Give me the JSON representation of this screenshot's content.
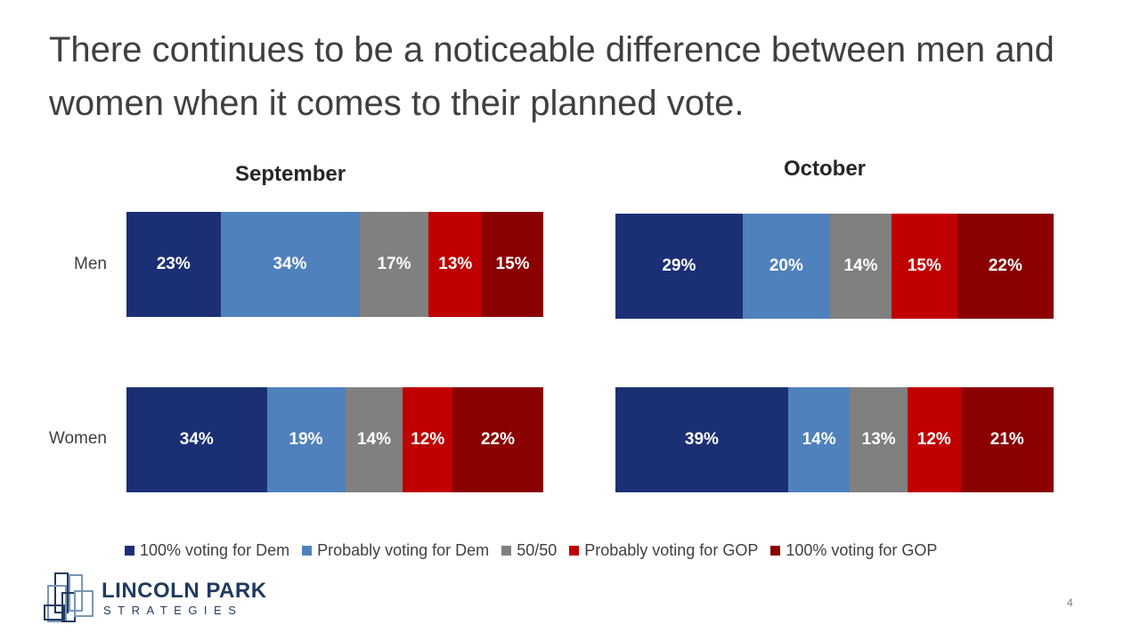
{
  "title": "There continues to be a noticeable difference between men and women when it comes to their planned vote.",
  "page_number": "4",
  "logo": {
    "name": "LINCOLN PARK",
    "sub": "STRATEGIES"
  },
  "colors": {
    "dem100": "#1b2f74",
    "demProb": "#4f81bd",
    "fifty": "#808080",
    "gopProb": "#c00000",
    "gop100": "#8b0000"
  },
  "chart_data": [
    {
      "type": "bar",
      "title": "September",
      "orientation": "horizontal",
      "stacked": "100%",
      "categories": [
        "Men",
        "Women"
      ],
      "series": [
        {
          "name": "100% voting for Dem",
          "values": [
            23,
            34
          ]
        },
        {
          "name": "Probably voting for Dem",
          "values": [
            34,
            19
          ]
        },
        {
          "name": "50/50",
          "values": [
            17,
            14
          ]
        },
        {
          "name": "Probably voting for GOP",
          "values": [
            13,
            12
          ]
        },
        {
          "name": "100% voting for GOP",
          "values": [
            15,
            22
          ]
        }
      ],
      "labels": [
        [
          "23%",
          "34%",
          "17%",
          "13%",
          "15%"
        ],
        [
          "34%",
          "19%",
          "14%",
          "12%",
          "22%"
        ]
      ],
      "legend": "bottom"
    },
    {
      "type": "bar",
      "title": "October",
      "orientation": "horizontal",
      "stacked": "100%",
      "categories": [
        "Men",
        "Women"
      ],
      "series": [
        {
          "name": "100% voting for Dem",
          "values": [
            29,
            39
          ]
        },
        {
          "name": "Probably voting for Dem",
          "values": [
            20,
            14
          ]
        },
        {
          "name": "50/50",
          "values": [
            14,
            13
          ]
        },
        {
          "name": "Probably voting for GOP",
          "values": [
            15,
            12
          ]
        },
        {
          "name": "100% voting for GOP",
          "values": [
            22,
            21
          ]
        }
      ],
      "labels": [
        [
          "29%",
          "20%",
          "14%",
          "15%",
          "22%"
        ],
        [
          "39%",
          "14%",
          "13%",
          "12%",
          "21%"
        ]
      ],
      "legend": "bottom"
    }
  ],
  "legend": [
    {
      "label": "100% voting for Dem",
      "color": "#1b2f74"
    },
    {
      "label": "Probably voting for Dem",
      "color": "#4f81bd"
    },
    {
      "label": "50/50",
      "color": "#808080"
    },
    {
      "label": "Probably voting for GOP",
      "color": "#c00000"
    },
    {
      "label": "100% voting for GOP",
      "color": "#8b0000"
    }
  ]
}
